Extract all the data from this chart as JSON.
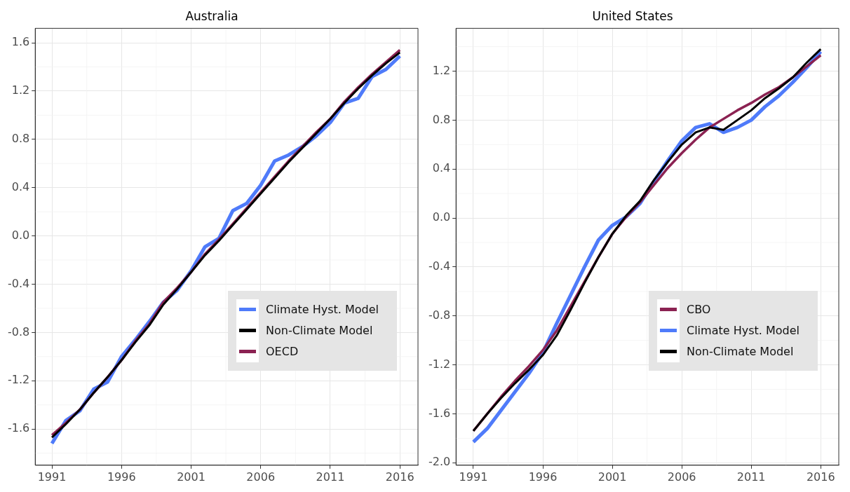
{
  "chart_data": [
    {
      "type": "line",
      "title": "Australia",
      "x": [
        1991,
        1992,
        1993,
        1994,
        1995,
        1996,
        1997,
        1998,
        1999,
        2000,
        2001,
        2002,
        2003,
        2004,
        2005,
        2006,
        2007,
        2008,
        2009,
        2010,
        2011,
        2012,
        2013,
        2014,
        2015,
        2016
      ],
      "xlim": [
        1989.8,
        2017.3
      ],
      "xticks": [
        1991,
        1996,
        2001,
        2006,
        2011,
        2016
      ],
      "ylim": [
        -1.9,
        1.72
      ],
      "yticks": [
        {
          "value": -1.6,
          "label": "-1.6"
        },
        {
          "value": -1.2,
          "label": "-1.2"
        },
        {
          "value": -0.8,
          "label": "-0.8"
        },
        {
          "value": -0.4,
          "label": "-0.4"
        },
        {
          "value": 0,
          "label": "0.0"
        },
        {
          "value": 0.4,
          "label": "0.4"
        },
        {
          "value": 0.8,
          "label": "0.8"
        },
        {
          "value": 1.2,
          "label": "1.2"
        },
        {
          "value": 1.6,
          "label": "1.6"
        }
      ],
      "grid": true,
      "legend": "bottom right",
      "marker": "none",
      "line_style": "solid",
      "series": [
        {
          "name": "Climate Hyst. Model",
          "color": "#4f7bfa",
          "values": [
            -1.72,
            -1.53,
            -1.45,
            -1.27,
            -1.21,
            -1.0,
            -0.86,
            -0.71,
            -0.55,
            -0.45,
            -0.29,
            -0.09,
            -0.02,
            0.21,
            0.27,
            0.42,
            0.62,
            0.67,
            0.74,
            0.83,
            0.94,
            1.1,
            1.14,
            1.32,
            1.38,
            1.49
          ]
        },
        {
          "name": "Non-Climate Model",
          "color": "#000000",
          "values": [
            -1.67,
            -1.56,
            -1.44,
            -1.3,
            -1.17,
            -1.03,
            -0.88,
            -0.74,
            -0.57,
            -0.44,
            -0.3,
            -0.16,
            -0.04,
            0.09,
            0.22,
            0.35,
            0.48,
            0.61,
            0.73,
            0.85,
            0.97,
            1.1,
            1.22,
            1.33,
            1.43,
            1.52
          ]
        },
        {
          "name": "OECD",
          "color": "#8b2252",
          "values": [
            -1.65,
            -1.55,
            -1.44,
            -1.3,
            -1.17,
            -1.03,
            -0.87,
            -0.73,
            -0.55,
            -0.43,
            -0.3,
            -0.15,
            -0.03,
            0.1,
            0.23,
            0.36,
            0.49,
            0.62,
            0.74,
            0.86,
            0.97,
            1.11,
            1.23,
            1.34,
            1.44,
            1.54
          ]
        }
      ]
    },
    {
      "type": "line",
      "title": "United States",
      "x": [
        1991,
        1992,
        1993,
        1994,
        1995,
        1996,
        1997,
        1998,
        1999,
        2000,
        2001,
        2002,
        2003,
        2004,
        2005,
        2006,
        2007,
        2008,
        2009,
        2010,
        2011,
        2012,
        2013,
        2014,
        2015,
        2016
      ],
      "xlim": [
        1989.75,
        2017.3
      ],
      "xticks": [
        1991,
        1996,
        2001,
        2006,
        2011,
        2016
      ],
      "ylim": [
        -2.02,
        1.55
      ],
      "yticks": [
        {
          "value": -2.0,
          "label": "-2.0"
        },
        {
          "value": -1.6,
          "label": "-1.6"
        },
        {
          "value": -1.2,
          "label": "-1.2"
        },
        {
          "value": -0.8,
          "label": "-0.8"
        },
        {
          "value": -0.4,
          "label": "-0.4"
        },
        {
          "value": 0,
          "label": "0.0"
        },
        {
          "value": 0.4,
          "label": "0.4"
        },
        {
          "value": 0.8,
          "label": "0.8"
        },
        {
          "value": 1.2,
          "label": "1.2"
        }
      ],
      "grid": true,
      "legend": "bottom right",
      "marker": "none",
      "line_style": "solid",
      "series": [
        {
          "name": "CBO",
          "color": "#8b2252",
          "values": [
            -1.74,
            -1.6,
            -1.46,
            -1.33,
            -1.21,
            -1.08,
            -0.92,
            -0.72,
            -0.52,
            -0.32,
            -0.13,
            0.01,
            0.13,
            0.27,
            0.41,
            0.53,
            0.64,
            0.74,
            0.81,
            0.88,
            0.94,
            1.01,
            1.07,
            1.15,
            1.24,
            1.33
          ]
        },
        {
          "name": "Climate Hyst. Model",
          "color": "#4f7bfa",
          "values": [
            -1.83,
            -1.72,
            -1.57,
            -1.42,
            -1.27,
            -1.1,
            -0.86,
            -0.63,
            -0.4,
            -0.18,
            -0.06,
            0.01,
            0.12,
            0.3,
            0.47,
            0.63,
            0.74,
            0.77,
            0.7,
            0.74,
            0.8,
            0.91,
            1.0,
            1.11,
            1.23,
            1.36
          ]
        },
        {
          "name": "Non-Climate Model",
          "color": "#000000",
          "values": [
            -1.74,
            -1.6,
            -1.47,
            -1.35,
            -1.24,
            -1.12,
            -0.96,
            -0.75,
            -0.53,
            -0.32,
            -0.13,
            0.02,
            0.14,
            0.31,
            0.46,
            0.6,
            0.7,
            0.74,
            0.72,
            0.8,
            0.88,
            0.98,
            1.06,
            1.15,
            1.27,
            1.38
          ]
        }
      ]
    }
  ]
}
